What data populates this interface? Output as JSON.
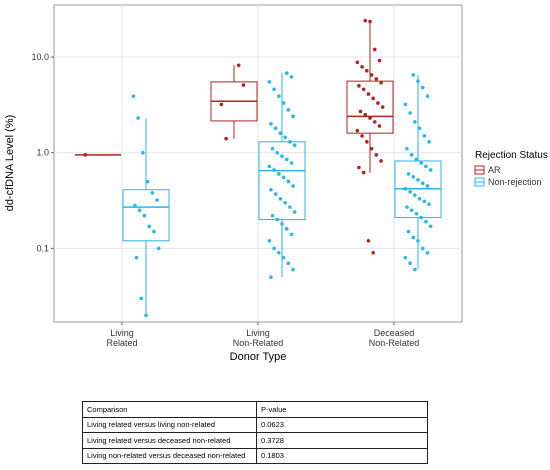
{
  "chart_data": {
    "type": "box",
    "y_label": "dd-cfDNA Level (%)",
    "x_label": "Donor Type",
    "categories": [
      [
        "Living",
        "Related"
      ],
      [
        "Living",
        "Non-Related"
      ],
      [
        "Deceased",
        "Non-Related"
      ]
    ],
    "ylog": true,
    "ylim": [
      0.017,
      35
    ],
    "yticks": [
      {
        "value": 10,
        "label": "10.0"
      },
      {
        "value": 1,
        "label": "1.0"
      },
      0.1
    ],
    "grid": true,
    "legend": "right",
    "legend_title": "Rejection Status",
    "series": [
      {
        "name": "AR",
        "color": "#b22222",
        "boxes": [
          {
            "min": 0.95,
            "q1": 0.95,
            "median": 0.95,
            "q3": 0.95,
            "max": 0.95,
            "points": [
              0.95
            ]
          },
          {
            "min": 1.4,
            "q1": 2.15,
            "median": 3.45,
            "q3": 5.5,
            "max": 8.2,
            "points": [
              8.2,
              5.1,
              3.2,
              1.4
            ]
          },
          {
            "min": 0.62,
            "q1": 1.6,
            "median": 2.4,
            "q3": 5.6,
            "max": 24,
            "points": [
              24,
              23.5,
              12,
              9.2,
              8.8,
              7.9,
              7.2,
              6.5,
              5.9,
              5.4,
              5.0,
              4.6,
              4.1,
              3.7,
              3.3,
              3.0,
              2.7,
              2.5,
              2.3,
              2.1,
              1.9,
              1.7,
              1.5,
              1.3,
              1.1,
              0.95,
              0.82,
              0.7,
              0.62,
              0.12,
              0.09
            ]
          }
        ]
      },
      {
        "name": "Non-rejection",
        "color": "#29b6e8",
        "boxes": [
          {
            "min": 0.02,
            "q1": 0.12,
            "median": 0.27,
            "q3": 0.41,
            "max": 2.3,
            "points": [
              3.9,
              2.3,
              1.0,
              0.5,
              0.38,
              0.32,
              0.28,
              0.25,
              0.22,
              0.17,
              0.15,
              0.1,
              0.08,
              0.03,
              0.02
            ]
          },
          {
            "min": 0.05,
            "q1": 0.2,
            "median": 0.65,
            "q3": 1.3,
            "max": 6.8,
            "points": [
              6.8,
              6.2,
              5.5,
              4.6,
              3.9,
              3.3,
              2.8,
              2.4,
              2.0,
              1.8,
              1.6,
              1.45,
              1.3,
              1.2,
              1.1,
              1.0,
              0.92,
              0.85,
              0.78,
              0.72,
              0.66,
              0.6,
              0.55,
              0.5,
              0.45,
              0.41,
              0.37,
              0.33,
              0.3,
              0.27,
              0.24,
              0.22,
              0.2,
              0.18,
              0.16,
              0.14,
              0.12,
              0.1,
              0.09,
              0.08,
              0.07,
              0.06,
              0.05
            ]
          },
          {
            "min": 0.06,
            "q1": 0.21,
            "median": 0.42,
            "q3": 0.82,
            "max": 6.5,
            "points": [
              6.5,
              5.6,
              4.8,
              3.9,
              3.2,
              2.6,
              2.1,
              1.8,
              1.5,
              1.3,
              1.1,
              0.95,
              0.85,
              0.78,
              0.72,
              0.66,
              0.6,
              0.56,
              0.52,
              0.48,
              0.45,
              0.42,
              0.39,
              0.36,
              0.33,
              0.31,
              0.29,
              0.27,
              0.25,
              0.23,
              0.21,
              0.19,
              0.17,
              0.15,
              0.13,
              0.12,
              0.1,
              0.09,
              0.08,
              0.07,
              0.06
            ]
          }
        ]
      }
    ]
  },
  "table": {
    "header": [
      "Comparison",
      "P-value"
    ],
    "rows": [
      [
        "Living related versus living non-related",
        "0.0623"
      ],
      [
        "Living related versus deceased non-related",
        "0.3728"
      ],
      [
        "Living non-related versus deceased non-related",
        "0.1803"
      ]
    ]
  }
}
